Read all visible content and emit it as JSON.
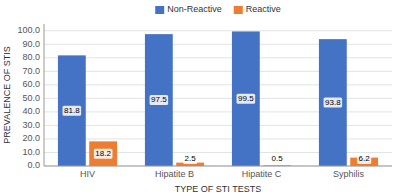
{
  "chart_data": {
    "type": "bar",
    "categories": [
      "HIV",
      "Hipatite B",
      "Hipatite C",
      "Syphilis"
    ],
    "series": [
      {
        "name": "Non-Reactive",
        "color": "#4472C4",
        "values": [
          81.8,
          97.5,
          99.5,
          93.8
        ]
      },
      {
        "name": "Reactive",
        "color": "#ED7D31",
        "values": [
          18.2,
          2.5,
          0.5,
          6.2
        ]
      }
    ],
    "xlabel": "TYPE OF STI TESTS",
    "ylabel": "PREVALENCE OF STIS",
    "ylim": [
      0,
      105
    ],
    "yticks": [
      {
        "value": 0,
        "label": "0.0"
      },
      {
        "value": 10,
        "label": "10.0"
      },
      {
        "value": 20,
        "label": "20.0"
      },
      {
        "value": 30,
        "label": "30.0"
      },
      {
        "value": 40,
        "label": "40.0"
      },
      {
        "value": 50,
        "label": "50.0"
      },
      {
        "value": 60,
        "label": "60.0"
      },
      {
        "value": 70,
        "label": "70.0"
      },
      {
        "value": 80,
        "label": "80.0"
      },
      {
        "value": 90,
        "label": "90.0"
      },
      {
        "value": 100,
        "label": "100.0"
      }
    ],
    "grid": true,
    "legend": "top",
    "data_labels": true
  }
}
